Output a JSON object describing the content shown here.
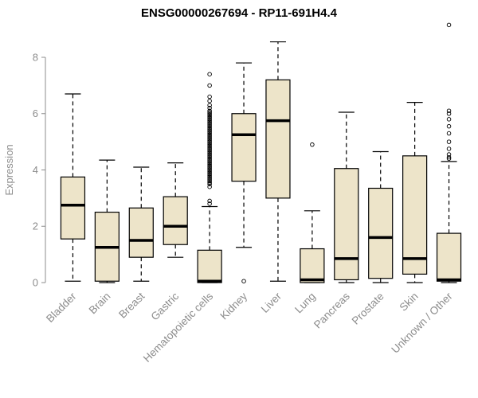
{
  "chart_data": {
    "type": "boxplot",
    "title": "ENSG00000267694 - RP11-691H4.4",
    "ylabel": "Expression",
    "ylim": [
      0,
      9.3
    ],
    "yticks": [
      0,
      2,
      4,
      6,
      8
    ],
    "grid": false,
    "legend": false,
    "categories": [
      "Bladder",
      "Brain",
      "Breast",
      "Gastric",
      "Hematopoietic cells",
      "Kidney",
      "Liver",
      "Lung",
      "Pancreas",
      "Prostate",
      "Skin",
      "Unknown / Other"
    ],
    "boxes": [
      {
        "category": "Bladder",
        "whisker_low": 0.05,
        "q1": 1.55,
        "median": 2.75,
        "q3": 3.75,
        "whisker_high": 6.7,
        "outliers": []
      },
      {
        "category": "Brain",
        "whisker_low": 0.0,
        "q1": 0.05,
        "median": 1.25,
        "q3": 2.5,
        "whisker_high": 4.35,
        "outliers": []
      },
      {
        "category": "Breast",
        "whisker_low": 0.05,
        "q1": 0.9,
        "median": 1.5,
        "q3": 2.65,
        "whisker_high": 4.1,
        "outliers": []
      },
      {
        "category": "Gastric",
        "whisker_low": 0.9,
        "q1": 1.35,
        "median": 2.0,
        "q3": 3.05,
        "whisker_high": 4.25,
        "outliers": []
      },
      {
        "category": "Hematopoietic cells",
        "whisker_low": 0.0,
        "q1": 0.0,
        "median": 0.05,
        "q3": 1.15,
        "whisker_high": 2.7,
        "outliers": [
          2.8,
          2.9,
          3.4,
          3.5,
          3.55,
          3.6,
          3.65,
          3.7,
          3.75,
          3.8,
          3.85,
          3.9,
          3.95,
          4.0,
          4.05,
          4.1,
          4.15,
          4.2,
          4.25,
          4.3,
          4.35,
          4.4,
          4.45,
          4.5,
          4.55,
          4.6,
          4.65,
          4.7,
          4.75,
          4.8,
          4.85,
          4.9,
          4.95,
          5.0,
          5.05,
          5.1,
          5.15,
          5.2,
          5.25,
          5.3,
          5.35,
          5.4,
          5.45,
          5.5,
          5.55,
          5.6,
          5.65,
          5.7,
          5.75,
          5.8,
          5.85,
          5.9,
          5.95,
          6.0,
          6.05,
          6.1,
          6.2,
          6.3,
          6.45,
          6.6,
          7.0,
          7.4
        ]
      },
      {
        "category": "Kidney",
        "whisker_low": 1.25,
        "q1": 3.6,
        "median": 5.25,
        "q3": 6.0,
        "whisker_high": 7.8,
        "outliers": [
          0.05
        ]
      },
      {
        "category": "Liver",
        "whisker_low": 0.05,
        "q1": 3.0,
        "median": 5.75,
        "q3": 7.2,
        "whisker_high": 8.55,
        "outliers": []
      },
      {
        "category": "Lung",
        "whisker_low": 0.0,
        "q1": 0.0,
        "median": 0.1,
        "q3": 1.2,
        "whisker_high": 2.55,
        "outliers": [
          4.9
        ]
      },
      {
        "category": "Pancreas",
        "whisker_low": 0.0,
        "q1": 0.1,
        "median": 0.85,
        "q3": 4.05,
        "whisker_high": 6.05,
        "outliers": []
      },
      {
        "category": "Prostate",
        "whisker_low": 0.0,
        "q1": 0.15,
        "median": 1.6,
        "q3": 3.35,
        "whisker_high": 4.65,
        "outliers": []
      },
      {
        "category": "Skin",
        "whisker_low": 0.0,
        "q1": 0.3,
        "median": 0.85,
        "q3": 4.5,
        "whisker_high": 6.4,
        "outliers": []
      },
      {
        "category": "Unknown / Other",
        "whisker_low": 0.0,
        "q1": 0.05,
        "median": 0.1,
        "q3": 1.75,
        "whisker_high": 4.3,
        "outliers": [
          4.4,
          4.45,
          4.55,
          4.75,
          5.0,
          5.3,
          5.55,
          5.8,
          6.0,
          6.1,
          9.15
        ]
      }
    ],
    "colors": {
      "box_fill": "#EDE4C9",
      "box_stroke": "#000000",
      "median": "#000000",
      "whisker": "#000000",
      "axis_text": "#8C8C8C",
      "background": "#FFFFFF"
    }
  }
}
